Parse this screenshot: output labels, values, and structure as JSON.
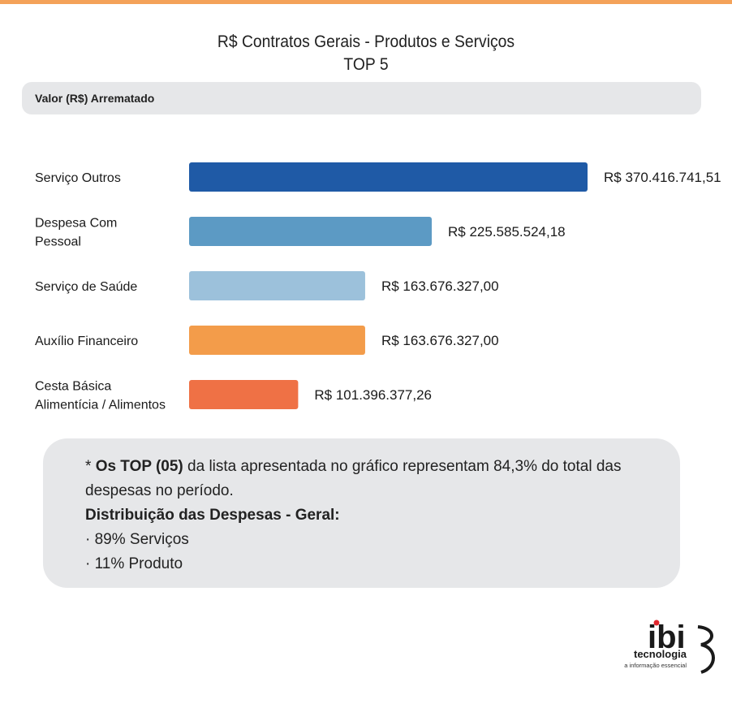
{
  "title": {
    "line1": "R$ Contratos Gerais - Produtos e Serviços",
    "line2": "TOP 5"
  },
  "header_label": "Valor (R$) Arrematado",
  "chart_data": {
    "type": "bar",
    "orientation": "horizontal",
    "categories": [
      [
        "Serviço Outros"
      ],
      [
        "Despesa Com",
        "Pessoal"
      ],
      [
        "Serviço de Saúde"
      ],
      [
        "Auxílio Financeiro"
      ],
      [
        "Cesta Básica",
        "Alimentícia / Alimentos"
      ]
    ],
    "values": [
      370416741.51,
      225585524.18,
      163676327.0,
      163676327.0,
      101396377.26
    ],
    "value_labels": [
      "R$ 370.416.741,51",
      "R$ 225.585.524,18",
      "R$ 163.676.327,00",
      "R$ 163.676.327,00",
      "R$ 101.396.377,26"
    ],
    "colors": [
      "#1f5aa6",
      "#5c9ac4",
      "#9cc1db",
      "#f39c4a",
      "#ef7145"
    ],
    "grid": false,
    "legend": "none"
  },
  "note": {
    "prefix": "* ",
    "bold1": "Os TOP (05)",
    "text1": " da lista apresentada no gráfico representam 84,3% do total das despesas no período.",
    "heading": "Distribuição das Despesas - Geral:",
    "items": [
      "· 89% Serviços",
      "· 11% Produto"
    ]
  },
  "logo": {
    "mark": "ibi",
    "name": "tecnologia",
    "tagline": "a informação essencial",
    "colors": {
      "accent": "#e1262d",
      "text": "#1a1a1a"
    }
  }
}
